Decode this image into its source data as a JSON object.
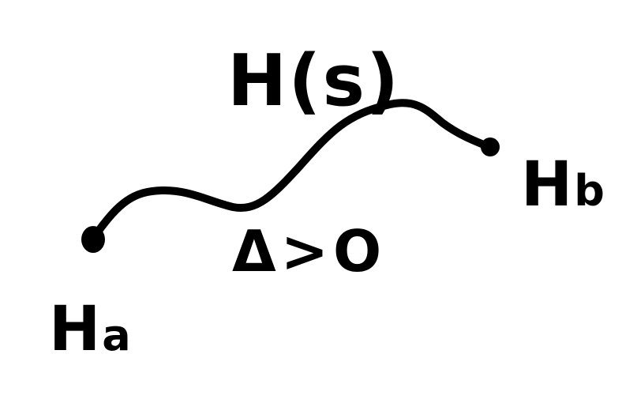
{
  "diagram": {
    "path_label": "H(s)",
    "condition_label": "Δ>O",
    "start_node": {
      "main": "H",
      "sub": "a"
    },
    "end_node": {
      "main": "H",
      "sub": "b"
    },
    "ink_color": "#000000",
    "background_color": "#ffffff"
  }
}
